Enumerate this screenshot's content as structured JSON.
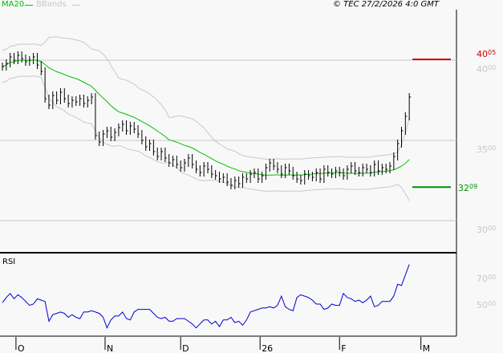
{
  "legend": {
    "ma_label": "MA20",
    "bb_label": "BBands",
    "ma_color": "#00c000",
    "bb_color": "#c8c8c8"
  },
  "copyright": "© TEC 27/2/2026 4:0 GMT",
  "rsi_label": "RSI",
  "chart_data": [
    {
      "type": "bar",
      "subtype": "price-bars",
      "ylim": [
        29.5,
        42.5
      ],
      "yticks": [
        {
          "value": 30,
          "main": "30",
          "sup": "00"
        },
        {
          "value": 35,
          "main": "35",
          "sup": "00"
        },
        {
          "value": 40,
          "main": "40",
          "sup": "00"
        }
      ],
      "grid": true,
      "overlays": [
        "MA20",
        "BBands"
      ],
      "close": [
        39.6,
        39.8,
        40.2,
        40.0,
        40.3,
        40.1,
        39.9,
        40.0,
        40.2,
        39.7,
        39.3,
        37.6,
        37.2,
        37.8,
        37.5,
        38.0,
        37.6,
        37.3,
        37.5,
        37.4,
        37.6,
        37.3,
        37.5,
        37.7,
        35.3,
        34.9,
        35.4,
        35.6,
        35.2,
        35.5,
        35.8,
        36.0,
        35.6,
        35.9,
        35.7,
        35.4,
        35.0,
        34.6,
        34.8,
        34.3,
        34.0,
        34.3,
        33.9,
        33.6,
        33.8,
        33.5,
        33.3,
        33.6,
        33.9,
        33.5,
        33.2,
        33.0,
        33.4,
        33.2,
        32.9,
        32.8,
        32.6,
        32.7,
        32.4,
        32.2,
        32.5,
        32.3,
        32.7,
        32.6,
        32.9,
        33.0,
        32.6,
        32.8,
        33.3,
        33.6,
        33.4,
        33.2,
        32.9,
        33.3,
        33.1,
        32.8,
        32.6,
        32.5,
        32.9,
        32.8,
        32.7,
        33.0,
        32.6,
        33.2,
        33.0,
        32.9,
        33.1,
        33.0,
        32.8,
        33.2,
        33.4,
        33.1,
        33.0,
        33.3,
        33.2,
        33.0,
        33.5,
        33.1,
        33.3,
        33.2,
        33.4,
        34.0,
        34.8,
        35.6,
        36.5,
        37.7
      ],
      "levels": [
        {
          "value": 40.05,
          "main": "40",
          "sup": "05",
          "color": "#d00000"
        },
        {
          "value": 32.09,
          "main": "32",
          "sup": "09",
          "color": "#009000"
        }
      ]
    },
    {
      "type": "line",
      "name": "RSI",
      "color": "#0000d0",
      "ylim": [
        20,
        90
      ],
      "yticks": [
        {
          "value": 50,
          "main": "50",
          "sup": "00"
        },
        {
          "value": 70,
          "main": "70",
          "sup": "00"
        }
      ],
      "values": [
        51,
        55,
        58,
        54,
        57,
        55,
        52,
        49,
        50,
        54,
        53,
        52,
        37,
        42,
        43,
        44,
        43,
        40,
        42,
        40,
        39,
        44,
        44,
        45,
        44,
        43,
        40,
        32,
        38,
        41,
        41,
        44,
        39,
        38,
        44,
        46,
        46,
        46,
        46,
        43,
        40,
        39,
        40,
        37,
        37,
        39,
        39,
        39,
        37,
        35,
        32,
        35,
        38,
        38,
        35,
        37,
        33,
        38,
        38,
        40,
        36,
        37,
        34,
        38,
        44,
        45,
        46,
        47,
        47,
        48,
        47,
        49,
        56,
        48,
        46,
        45,
        55,
        57,
        56,
        55,
        53,
        50,
        50,
        46,
        47,
        50,
        49,
        49,
        58,
        55,
        54,
        52,
        53,
        51,
        53,
        56,
        48,
        49,
        52,
        52,
        52,
        56,
        65,
        64,
        72,
        80
      ]
    }
  ],
  "xaxis": {
    "ticks": [
      {
        "label": "O",
        "at_bar": 3.5
      },
      {
        "label": "N",
        "at_bar": 26.5
      },
      {
        "label": "D",
        "at_bar": 46
      },
      {
        "label": "26",
        "at_bar": 66.5
      },
      {
        "label": "F",
        "at_bar": 87
      },
      {
        "label": "M",
        "at_bar": 108
      }
    ]
  }
}
